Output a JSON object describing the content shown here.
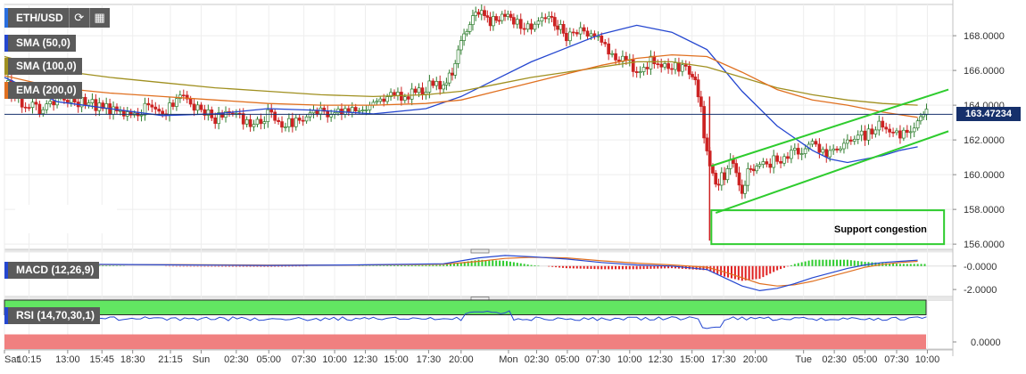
{
  "header": {
    "symbol": "ETH/USD",
    "refresh_icon": "refresh-icon",
    "calendar_icon": "calendar-icon"
  },
  "legend": {
    "sma50": "SMA (50,0)",
    "sma100": "SMA (100,0)",
    "ema200": "EMA (200,0)",
    "macd": "MACD (12,26,9)",
    "rsi": "RSI (14,70,30,1)"
  },
  "annotations": {
    "support_label": "Support congestion"
  },
  "colors": {
    "up_candle": "#e0e0e0",
    "down_candle": "#cc2222",
    "candle_body_up": "#2e9e2e",
    "sma50": "#2547d0",
    "sma100": "#a09020",
    "ema200": "#e07020",
    "channel": "#2ecc2e",
    "price_line": "#16306b",
    "macd_line": "#2547d0",
    "signal_line": "#e07020",
    "hist_pos": "#2ecc2e",
    "hist_neg": "#e02020",
    "rsi_line": "#2547d0",
    "rsi_overbought": "#62e662",
    "rsi_oversold": "#f08080"
  },
  "chart_data": {
    "type": "line",
    "price_axis": {
      "ticks": [
        "168.0000",
        "166.0000",
        "164.0000",
        "162.0000",
        "160.0000",
        "158.0000",
        "156.0000"
      ],
      "tick_values": [
        168,
        166,
        164,
        162,
        160,
        158,
        156
      ],
      "ylim": [
        155.7,
        169.8
      ],
      "current_price": "163.47234",
      "current_value": 163.47234
    },
    "macd_axis": {
      "ticks": [
        "-0.0000",
        "-2.0000"
      ],
      "tick_values": [
        0,
        -2
      ],
      "ylim": [
        -2.6,
        1.2
      ]
    },
    "rsi_axis": {
      "ticks": [
        "0.0000"
      ],
      "tick_values": [
        0
      ]
    },
    "time_axis": {
      "labels": [
        "Sat",
        "10:15",
        "13:00",
        "15:45",
        "18:30",
        "21:15",
        "Sun",
        "02:30",
        "05:00",
        "07:30",
        "10:00",
        "12:30",
        "15:00",
        "17:30",
        "20:00",
        "Mon",
        "02:30",
        "05:00",
        "07:30",
        "10:00",
        "12:30",
        "15:00",
        "17:30",
        "20:00",
        "Tue",
        "02:30",
        "05:00",
        "07:30",
        "10:00"
      ],
      "positions": [
        0,
        2.8,
        7.2,
        11.1,
        14.6,
        18.9,
        22.4,
        26.4,
        30.1,
        34.1,
        37.6,
        41.1,
        44.6,
        48.3,
        52,
        57.4,
        60.6,
        64.1,
        67.6,
        71.2,
        74.7,
        78.3,
        81.9,
        85.5,
        91,
        94.5,
        98,
        101.6,
        105.1
      ],
      "xlim": [
        0,
        108
      ]
    },
    "series": [
      {
        "name": "SMA (50,0)",
        "x": [
          0,
          6,
          12,
          18,
          24,
          30,
          36,
          42,
          48,
          52,
          56,
          60,
          64,
          68,
          72,
          76,
          80,
          82,
          84,
          86,
          88,
          90,
          92,
          94,
          96,
          98,
          100,
          102,
          104
        ],
        "y": [
          165.6,
          164.2,
          163.8,
          163.4,
          163.5,
          163.8,
          163.7,
          163.5,
          163.8,
          164.5,
          165.5,
          166.5,
          167.3,
          168.1,
          168.6,
          168.2,
          167.2,
          166.0,
          164.8,
          163.8,
          162.8,
          162.1,
          161.4,
          160.9,
          160.7,
          160.9,
          161.1,
          161.4,
          161.6
        ]
      },
      {
        "name": "SMA (100,0)",
        "x": [
          0,
          6,
          12,
          18,
          24,
          30,
          36,
          42,
          48,
          52,
          56,
          60,
          64,
          68,
          72,
          76,
          80,
          84,
          88,
          92,
          96,
          100,
          104
        ],
        "y": [
          166.8,
          166.0,
          165.6,
          165.3,
          165.0,
          164.8,
          164.6,
          164.5,
          164.6,
          164.8,
          165.2,
          165.6,
          165.9,
          166.2,
          166.5,
          166.5,
          166.2,
          165.6,
          165.0,
          164.6,
          164.3,
          164.1,
          164.0
        ]
      },
      {
        "name": "EMA (200,0)",
        "x": [
          0,
          6,
          12,
          18,
          24,
          30,
          36,
          42,
          48,
          52,
          56,
          60,
          64,
          68,
          72,
          76,
          80,
          84,
          88,
          92,
          96,
          100,
          104
        ],
        "y": [
          165.7,
          165.0,
          164.7,
          164.5,
          164.3,
          164.1,
          164.0,
          164.0,
          164.1,
          164.3,
          164.8,
          165.3,
          165.8,
          166.3,
          166.7,
          166.9,
          166.8,
          165.9,
          164.9,
          164.3,
          164.0,
          163.6,
          163.3
        ]
      }
    ],
    "channel": {
      "upper": {
        "x": [
          80.5,
          107.5
        ],
        "y": [
          160.5,
          164.9
        ]
      },
      "lower": {
        "x": [
          81.0,
          107.5
        ],
        "y": [
          157.8,
          162.5
        ]
      }
    },
    "support_zone": {
      "x": [
        80.5,
        107.0
      ],
      "y": [
        156.0,
        157.95
      ]
    },
    "macd": {
      "macd_x": [
        0,
        10,
        20,
        30,
        40,
        50,
        54,
        57,
        60,
        64,
        68,
        72,
        76,
        80,
        82,
        84,
        86,
        88,
        90,
        92,
        94,
        96,
        98,
        100,
        102,
        104
      ],
      "macd_y": [
        0.1,
        0.15,
        0.1,
        0.05,
        0.1,
        0.2,
        0.7,
        0.9,
        0.8,
        0.6,
        0.3,
        0.1,
        0,
        -0.3,
        -1.0,
        -1.7,
        -2.1,
        -1.9,
        -1.5,
        -1.0,
        -0.6,
        -0.2,
        0.1,
        0.3,
        0.4,
        0.5
      ],
      "signal_x": [
        0,
        10,
        20,
        30,
        40,
        50,
        54,
        57,
        60,
        64,
        68,
        72,
        76,
        80,
        82,
        84,
        86,
        88,
        90,
        92,
        94,
        96,
        98,
        100,
        102,
        104
      ],
      "signal_y": [
        0.12,
        0.12,
        0.12,
        0.08,
        0.09,
        0.15,
        0.4,
        0.65,
        0.75,
        0.7,
        0.45,
        0.25,
        0.1,
        -0.1,
        -0.5,
        -1.0,
        -1.5,
        -1.7,
        -1.6,
        -1.3,
        -0.9,
        -0.5,
        -0.1,
        0.15,
        0.3,
        0.4
      ]
    },
    "rsi": {
      "overbought": 70,
      "oversold": 30,
      "ylim": [
        0,
        100
      ]
    }
  }
}
